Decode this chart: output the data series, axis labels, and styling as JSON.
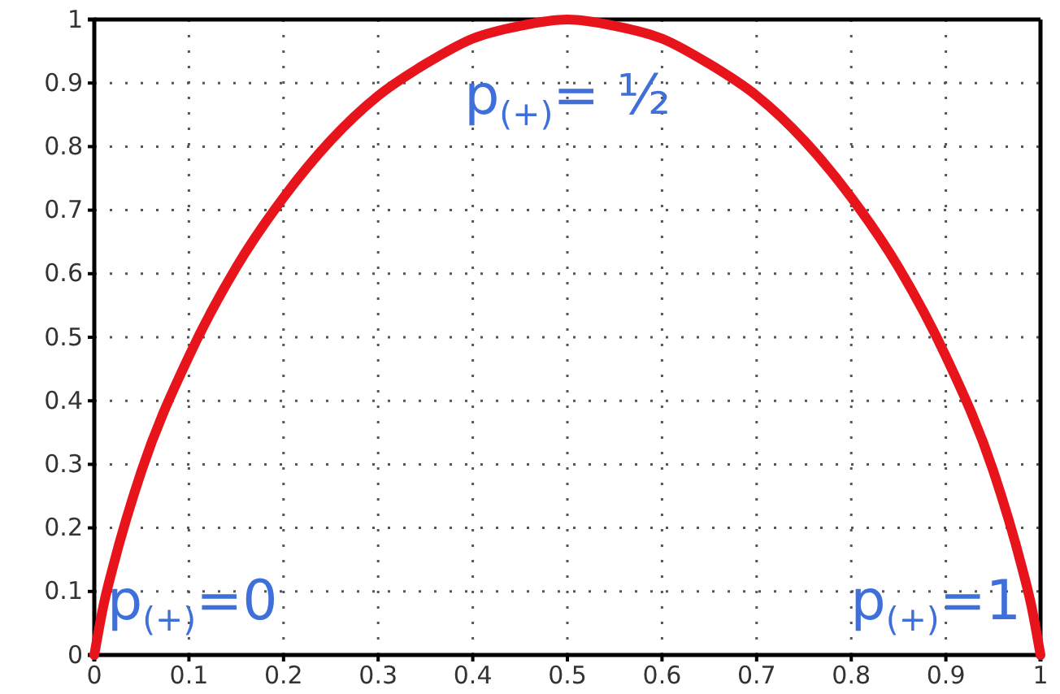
{
  "chart_data": {
    "type": "line",
    "x": [
      0,
      0.01,
      0.02,
      0.05,
      0.1,
      0.15,
      0.2,
      0.25,
      0.3,
      0.35,
      0.4,
      0.45,
      0.5,
      0.55,
      0.6,
      0.65,
      0.7,
      0.75,
      0.8,
      0.85,
      0.9,
      0.95,
      0.98,
      0.99,
      1
    ],
    "series": [
      {
        "color": "#e8141c",
        "values": [
          0,
          0.08,
          0.14,
          0.29,
          0.47,
          0.61,
          0.72,
          0.81,
          0.88,
          0.93,
          0.97,
          0.99,
          1,
          0.99,
          0.97,
          0.93,
          0.88,
          0.81,
          0.72,
          0.61,
          0.47,
          0.29,
          0.14,
          0.08,
          0
        ]
      }
    ],
    "xlim": [
      0,
      1
    ],
    "ylim": [
      0,
      1
    ],
    "xticks": [
      0,
      0.1,
      0.2,
      0.3,
      0.4,
      0.5,
      0.6,
      0.7,
      0.8,
      0.9,
      1
    ],
    "yticks": [
      0,
      0.1,
      0.2,
      0.3,
      0.4,
      0.5,
      0.6,
      0.7,
      0.8,
      0.9,
      1
    ],
    "grid": true,
    "line_style": "solid",
    "marker": "none",
    "annotations": [
      {
        "text": "p$_{(+)}$=0",
        "x": 0,
        "y": 0
      },
      {
        "text": "p$_{(+)}$= ½",
        "x": 0.5,
        "y": 1
      },
      {
        "text": "p$_{(+)}$=1",
        "x": 1,
        "y": 0
      }
    ]
  }
}
